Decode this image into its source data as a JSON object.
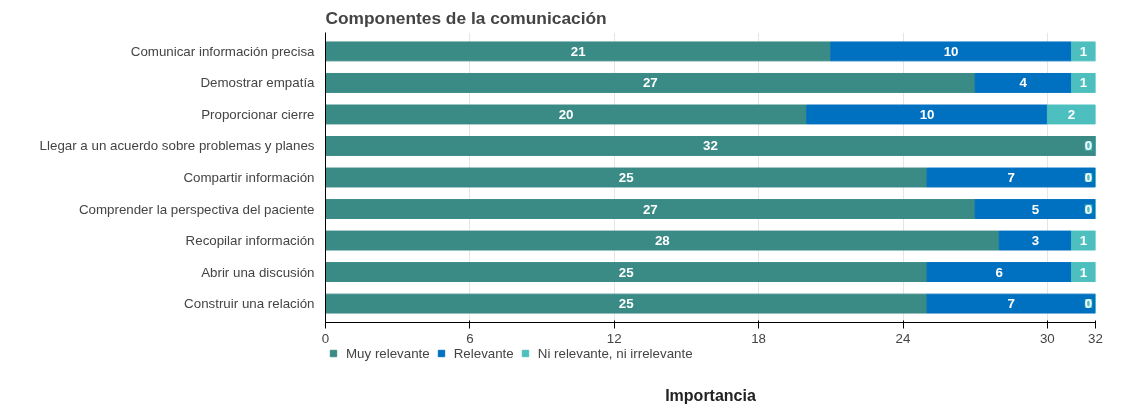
{
  "chart_data": {
    "type": "bar",
    "orientation": "horizontal",
    "stacked": true,
    "title": "Componentes de la comunicación",
    "xlabel": "Importancia",
    "categories": [
      "Comunicar información precisa",
      "Demostrar empatía",
      "Proporcionar cierre",
      "Llegar a un acuerdo sobre problemas y planes",
      "Compartir información",
      "Comprender la perspectiva del paciente",
      "Recopilar información",
      "Abrir una discusión",
      "Construir una relación"
    ],
    "series": [
      {
        "name": "Muy relevante",
        "color": "#3a8a86",
        "values": [
          21,
          27,
          20,
          32,
          25,
          27,
          28,
          25,
          25
        ],
        "value_labels": [
          "21",
          "27",
          "20",
          "32",
          "25",
          "27",
          "28",
          "25",
          "25"
        ]
      },
      {
        "name": "Relevante",
        "color": "#0070c0",
        "values": [
          10,
          4,
          10,
          0,
          7,
          5,
          3,
          6,
          7
        ],
        "value_labels": [
          "10",
          "4",
          "10",
          null,
          "7",
          "5",
          "3",
          "6",
          "7"
        ]
      },
      {
        "name": "Ni relevante, ni irrelevante",
        "color": "#4dbfbf",
        "values": [
          1,
          1,
          2,
          0,
          0,
          0,
          1,
          1,
          0
        ],
        "value_labels": [
          "1",
          "1",
          "2",
          "0",
          "0",
          "0",
          "1",
          "1",
          "0"
        ]
      }
    ],
    "xlim": [
      0,
      32
    ],
    "xticks": [
      0,
      6,
      12,
      18,
      24,
      30,
      32
    ],
    "grid": "x",
    "legend": "bottom"
  }
}
